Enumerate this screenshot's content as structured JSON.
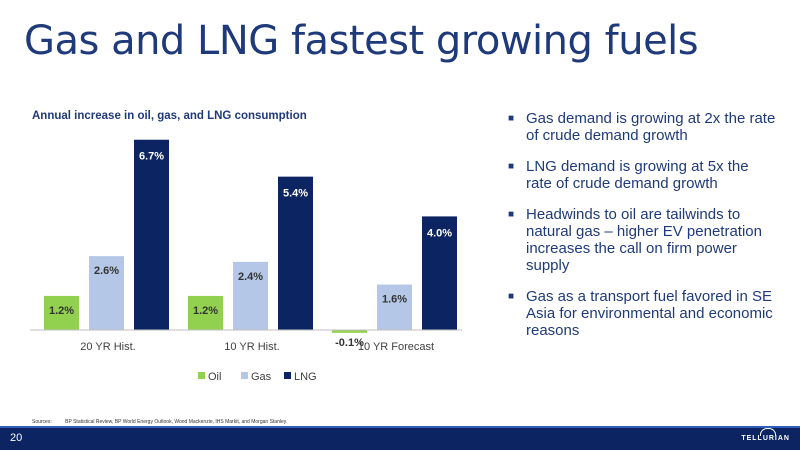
{
  "slide": {
    "title": "Gas and LNG fastest growing fuels",
    "page_number": "20",
    "logo_text": "TELLURIAN",
    "sources_label": "Sources:",
    "sources_text": "BP Statistical Review, BP World Energy Outlook, Wood Mackenzie, IHS Markit, and Morgan Stanley."
  },
  "bullets": [
    "Gas demand is growing at 2x the rate of crude demand growth",
    "LNG demand is growing at 5x the rate of crude demand growth",
    "Headwinds to oil are tailwinds to natural gas – higher EV penetration increases the call on firm power supply",
    "Gas as a transport fuel favored in SE Asia for environmental and economic reasons"
  ],
  "chart_data": {
    "type": "bar",
    "title": "Annual increase in oil, gas, and LNG consumption",
    "categories": [
      "20 YR Hist.",
      "10 YR Hist.",
      "10 YR Forecast"
    ],
    "series": [
      {
        "name": "Oil",
        "values": [
          1.2,
          1.2,
          -0.1
        ],
        "labels": [
          "1.2%",
          "1.2%",
          "-0.1%"
        ],
        "color": "#92d050"
      },
      {
        "name": "Gas",
        "values": [
          2.6,
          2.4,
          1.6
        ],
        "labels": [
          "2.6%",
          "2.4%",
          "1.6%"
        ],
        "color": "#b4c7e7"
      },
      {
        "name": "LNG",
        "values": [
          6.7,
          5.4,
          4.0
        ],
        "labels": [
          "6.7%",
          "5.4%",
          "4.0%"
        ],
        "color": "#0c2461"
      }
    ],
    "legend_position": "bottom",
    "grid": false,
    "ylim": [
      -0.2,
      6.7
    ]
  }
}
